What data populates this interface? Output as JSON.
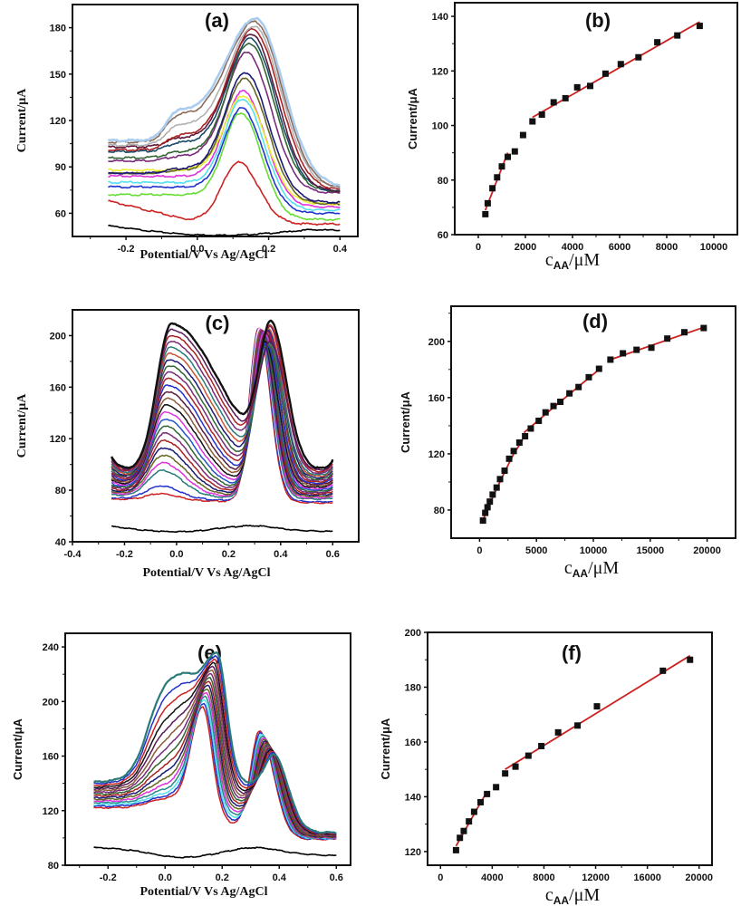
{
  "chart_data": [
    {
      "id": "a",
      "type": "line",
      "panel_label": "(a)",
      "title": "",
      "xlabel": "Potential/V Vs Ag/AgCl",
      "ylabel": "Current/μA",
      "xlim": [
        -0.35,
        0.45
      ],
      "ylim": [
        45,
        195
      ],
      "xticks": [
        -0.2,
        0.0,
        0.2,
        0.4
      ],
      "xtick_labels": [
        "-0.2",
        "0.0",
        "0.2",
        "0.4"
      ],
      "yticks": [
        60,
        90,
        120,
        150,
        180
      ],
      "ytick_labels": [
        "60",
        "90",
        "120",
        "150",
        "180"
      ],
      "x_range": [
        -0.25,
        0.4
      ],
      "blank": {
        "name": "blank",
        "color": "#000000",
        "start": 52,
        "end": 49,
        "dip": 46
      },
      "series": [
        {
          "color": "#cc2222",
          "base": 68,
          "shoulder": 0,
          "peak": 93,
          "peak_x": 0.115,
          "end": 53
        },
        {
          "color": "#66dd33",
          "base": 72,
          "shoulder": 0,
          "peak": 125,
          "peak_x": 0.122,
          "end": 56
        },
        {
          "color": "#2233cc",
          "base": 77,
          "shoulder": 0,
          "peak": 128,
          "peak_x": 0.124,
          "end": 60
        },
        {
          "color": "#55e0ee",
          "base": 80,
          "shoulder": 0,
          "peak": 134,
          "peak_x": 0.126,
          "end": 62
        },
        {
          "color": "#dd33dd",
          "base": 84,
          "shoulder": 0,
          "peak": 139,
          "peak_x": 0.128,
          "end": 64
        },
        {
          "color": "#eeee33",
          "base": 88,
          "shoulder": 0,
          "peak": 136,
          "peak_x": 0.128,
          "end": 66
        },
        {
          "color": "#666622",
          "base": 86,
          "shoulder": 2,
          "peak": 147,
          "peak_x": 0.132,
          "end": 66
        },
        {
          "color": "#1a1a77",
          "base": 86,
          "shoulder": 3,
          "peak": 151,
          "peak_x": 0.134,
          "end": 67
        },
        {
          "color": "#7a2a7a",
          "base": 94,
          "shoulder": 3,
          "peak": 164,
          "peak_x": 0.138,
          "end": 73
        },
        {
          "color": "#336633",
          "base": 96,
          "shoulder": 4,
          "peak": 170,
          "peak_x": 0.145,
          "end": 74
        },
        {
          "color": "#1a4a6a",
          "base": 100,
          "shoulder": 6,
          "peak": 173,
          "peak_x": 0.148,
          "end": 74
        },
        {
          "color": "#5a1a3a",
          "base": 103,
          "shoulder": 6,
          "peak": 176,
          "peak_x": 0.15,
          "end": 74
        },
        {
          "color": "#aa2222",
          "base": 101,
          "shoulder": 10,
          "peak": 179,
          "peak_x": 0.155,
          "end": 75
        },
        {
          "color": "#b0b0b0",
          "base": 104,
          "shoulder": 14,
          "peak": 181,
          "peak_x": 0.158,
          "end": 76
        },
        {
          "color": "#8a6a5a",
          "base": 106,
          "shoulder": 19,
          "peak": 184,
          "peak_x": 0.16,
          "end": 76
        },
        {
          "color": "#aaccee",
          "base": 107,
          "shoulder": 21,
          "peak": 186,
          "peak_x": 0.162,
          "end": 77
        }
      ]
    },
    {
      "id": "b",
      "type": "scatter",
      "panel_label": "(b)",
      "title": "",
      "xlabel": "C_AA/μM",
      "xlabel_main": "C",
      "xlabel_sub": "AA",
      "xlabel_unit": "/μM",
      "ylabel": "Current/μA",
      "xlim": [
        -1000,
        11000
      ],
      "ylim": [
        60,
        145
      ],
      "xticks": [
        0,
        2000,
        4000,
        6000,
        8000,
        10000
      ],
      "xtick_labels": [
        "0",
        "2000",
        "4000",
        "6000",
        "8000",
        "10000"
      ],
      "yticks": [
        60,
        80,
        100,
        120,
        140
      ],
      "ytick_labels": [
        "60",
        "80",
        "100",
        "120",
        "140"
      ],
      "points": [
        [
          300,
          67.5
        ],
        [
          400,
          71.5
        ],
        [
          600,
          77
        ],
        [
          800,
          81
        ],
        [
          1000,
          85
        ],
        [
          1250,
          88.5
        ],
        [
          1550,
          90.5
        ],
        [
          1900,
          96.5
        ],
        [
          2300,
          101.5
        ],
        [
          2700,
          104
        ],
        [
          3200,
          108.5
        ],
        [
          3700,
          110
        ],
        [
          4200,
          114
        ],
        [
          4750,
          114.5
        ],
        [
          5400,
          119
        ],
        [
          6050,
          122.5
        ],
        [
          6800,
          125
        ],
        [
          7600,
          130.5
        ],
        [
          8450,
          133
        ],
        [
          9400,
          136.5
        ]
      ],
      "fit_lines": [
        {
          "x": [
            300,
            1250
          ],
          "y": [
            69,
            90
          ]
        },
        {
          "x": [
            2300,
            9400
          ],
          "y": [
            103,
            138
          ]
        }
      ],
      "line_color": "#cc2222",
      "marker_color": "#111111"
    },
    {
      "id": "c",
      "type": "line",
      "panel_label": "(c)",
      "title": "",
      "xlabel": "Potential/V Vs Ag/AgCl",
      "ylabel": "Current/μA",
      "xlim": [
        -0.4,
        0.7
      ],
      "ylim": [
        40,
        220
      ],
      "xticks": [
        -0.4,
        -0.2,
        0.0,
        0.2,
        0.4,
        0.6
      ],
      "xtick_labels": [
        "-0.4",
        "-0.2",
        "0.0",
        "0.2",
        "0.4",
        "0.6"
      ],
      "yticks": [
        40,
        80,
        120,
        160,
        200
      ],
      "ytick_labels": [
        "40",
        "80",
        "120",
        "160",
        "200"
      ],
      "x_range": [
        -0.25,
        0.6
      ],
      "blank": {
        "name": "blank",
        "color": "#000000",
        "start": 52,
        "end": 48,
        "bump": 51
      },
      "series_colors": [
        "#cc2222",
        "#2233cc",
        "#ffffff",
        "#2a7a7a",
        "#dd33dd",
        "#666622",
        "#1a1a77",
        "#aa2222",
        "#7a2a7a",
        "#336633",
        "#2255cc",
        "#dd33dd",
        "#111111",
        "#8a5a3a",
        "#5a1a3a",
        "#2233cc",
        "#aa2222",
        "#7a2a7a",
        "#336633",
        "#1a1a77",
        "#cc5533",
        "#2a7a7a",
        "#7a2a7a",
        "#aa2222",
        "#5a1a5a",
        "#111111"
      ],
      "peak1_max": 209,
      "peak2_max": 210
    },
    {
      "id": "d",
      "type": "scatter",
      "panel_label": "(d)",
      "title": "",
      "xlabel": "C_AA/μM",
      "xlabel_main": "C",
      "xlabel_sub": "AA",
      "xlabel_unit": "/μM",
      "ylabel": "Current/μA",
      "xlim": [
        -2500,
        22500
      ],
      "ylim": [
        60,
        225
      ],
      "xticks": [
        0,
        5000,
        10000,
        15000,
        20000
      ],
      "xtick_labels": [
        "0",
        "5000",
        "10000",
        "15000",
        "20000"
      ],
      "yticks": [
        80,
        120,
        160,
        200
      ],
      "ytick_labels": [
        "80",
        "120",
        "160",
        "200"
      ],
      "points": [
        [
          300,
          72.5
        ],
        [
          500,
          78
        ],
        [
          700,
          82
        ],
        [
          900,
          86
        ],
        [
          1150,
          91
        ],
        [
          1500,
          96
        ],
        [
          1800,
          102
        ],
        [
          2200,
          108
        ],
        [
          2600,
          116.5
        ],
        [
          3000,
          122
        ],
        [
          3500,
          128
        ],
        [
          4000,
          132.5
        ],
        [
          4500,
          138
        ],
        [
          5200,
          143.5
        ],
        [
          5800,
          149.5
        ],
        [
          6500,
          154
        ],
        [
          7100,
          157
        ],
        [
          7900,
          163
        ],
        [
          8700,
          167.5
        ],
        [
          9600,
          174.5
        ],
        [
          10500,
          180.5
        ],
        [
          11500,
          187
        ],
        [
          12600,
          191.5
        ],
        [
          13800,
          194
        ],
        [
          15100,
          195.5
        ],
        [
          16500,
          202
        ],
        [
          18000,
          206.5
        ],
        [
          19700,
          209.5
        ]
      ],
      "fit_lines": [
        {
          "x": [
            300,
            1150,
            2200,
            3000,
            3800
          ],
          "y": [
            73,
            89,
            107,
            120,
            130
          ]
        },
        {
          "x": [
            3900,
            6500,
            10500
          ],
          "y": [
            135,
            153,
            180
          ]
        },
        {
          "x": [
            11500,
            19700
          ],
          "y": [
            187,
            210
          ]
        }
      ],
      "line_color": "#cc2222",
      "marker_color": "#111111"
    },
    {
      "id": "e",
      "type": "line",
      "panel_label": "(e)",
      "title": "",
      "xlabel": "Potential/V Vs Ag/AgCl",
      "ylabel": "Current/μA",
      "xlim": [
        -0.35,
        0.65
      ],
      "ylim": [
        80,
        250
      ],
      "xticks": [
        -0.2,
        0.0,
        0.2,
        0.4,
        0.6
      ],
      "xtick_labels": [
        "-0.2",
        "0.0",
        "0.2",
        "0.4",
        "0.6"
      ],
      "yticks": [
        80,
        120,
        160,
        200,
        240
      ],
      "ytick_labels": [
        "80",
        "120",
        "160",
        "200",
        "240"
      ],
      "x_range": [
        -0.25,
        0.6
      ],
      "blank": {
        "name": "blank",
        "color": "#000000",
        "start": 93,
        "end": 87,
        "dip": 84,
        "bump": 89
      },
      "series_colors": [
        "#cc2222",
        "#2233cc",
        "#55e0ee",
        "#2a8a8a",
        "#dd33dd",
        "#666622",
        "#1a1a77",
        "#aa2222",
        "#336633",
        "#7a2a7a",
        "#8a5a3a",
        "#5a1a5a",
        "#111111",
        "#cc2222",
        "#2233cc",
        "#2a7a7a"
      ]
    },
    {
      "id": "f",
      "type": "scatter",
      "panel_label": "(f)",
      "title": "",
      "xlabel": "C_AA/μM",
      "xlabel_main": "C",
      "xlabel_sub": "AA",
      "xlabel_unit": "/μM",
      "ylabel": "Current/μA",
      "xlim": [
        -1000,
        21000
      ],
      "ylim": [
        115,
        200
      ],
      "xticks": [
        0,
        4000,
        8000,
        12000,
        16000,
        20000
      ],
      "xtick_labels": [
        "0",
        "4000",
        "8000",
        "12000",
        "16000",
        "20000"
      ],
      "yticks": [
        120,
        140,
        160,
        180,
        200
      ],
      "ytick_labels": [
        "120",
        "140",
        "160",
        "180",
        "200"
      ],
      "points": [
        [
          1200,
          120.5
        ],
        [
          1500,
          125
        ],
        [
          1800,
          127.5
        ],
        [
          2200,
          131
        ],
        [
          2600,
          134.5
        ],
        [
          3100,
          138
        ],
        [
          3600,
          141
        ],
        [
          4300,
          143.5
        ],
        [
          5000,
          148.5
        ],
        [
          5800,
          151
        ],
        [
          6800,
          155
        ],
        [
          7800,
          158.5
        ],
        [
          9100,
          163.5
        ],
        [
          10600,
          166
        ],
        [
          12100,
          173
        ],
        [
          17200,
          186
        ],
        [
          19300,
          190
        ]
      ],
      "fit_lines": [
        {
          "x": [
            1200,
            3600
          ],
          "y": [
            122,
            142
          ]
        },
        {
          "x": [
            5000,
            19300
          ],
          "y": [
            150,
            191.5
          ]
        }
      ],
      "line_color": "#cc2222",
      "marker_color": "#111111"
    }
  ]
}
